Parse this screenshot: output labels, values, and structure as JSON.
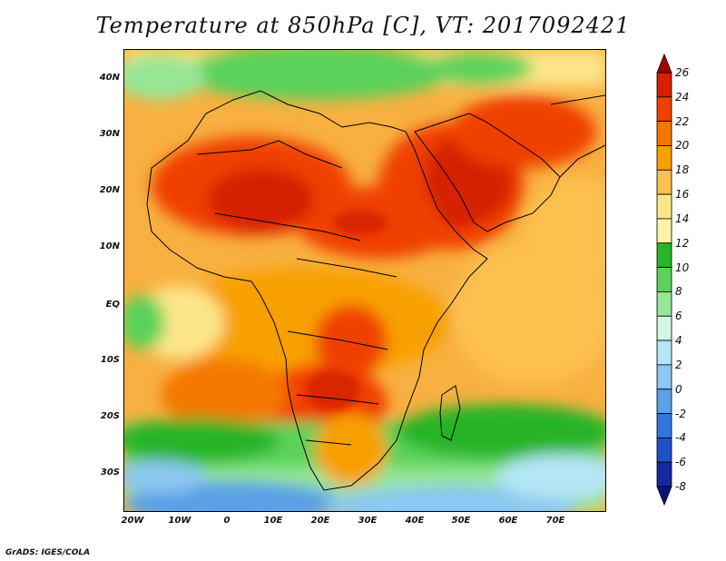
{
  "title": "Temperature at 850hPa [C], VT: 2017092421",
  "credit": "GrADS: IGES/COLA",
  "axes": {
    "lat_ticks": [
      "40N",
      "30N",
      "20N",
      "10N",
      "EQ",
      "10S",
      "20S",
      "30S"
    ],
    "lon_ticks": [
      "20W",
      "10W",
      "0",
      "10E",
      "20E",
      "30E",
      "40E",
      "50E",
      "60E",
      "70E"
    ]
  },
  "colorbar": {
    "labels": [
      "26",
      "24",
      "22",
      "20",
      "18",
      "16",
      "14",
      "12",
      "10",
      "8",
      "6",
      "4",
      "2",
      "0",
      "-2",
      "-4",
      "-6",
      "-8"
    ],
    "colors": [
      "#a50000",
      "#d62000",
      "#f04000",
      "#f47800",
      "#f8a000",
      "#fcc050",
      "#fde68a",
      "#fef3a8",
      "#28b428",
      "#5ad25a",
      "#96e696",
      "#d2f5e6",
      "#b4e6f5",
      "#8cc8f0",
      "#5aa0e6",
      "#3278dc",
      "#1e50c8",
      "#1428a0",
      "#0a1478"
    ]
  }
}
